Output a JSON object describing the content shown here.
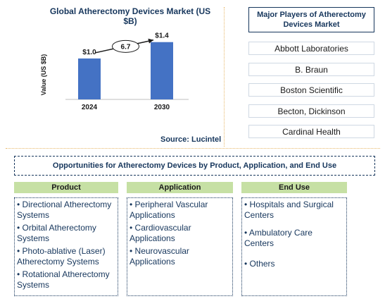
{
  "chart_data": {
    "type": "bar",
    "title": "Global Atherectomy Devices Market (US $B)",
    "ylabel": "Value (US $B)",
    "categories": [
      "2024",
      "2030"
    ],
    "values": [
      1.0,
      1.4
    ],
    "value_labels": [
      "$1.0",
      "$1.4"
    ],
    "cagr_label": "6.7",
    "source": "Source: Lucintel",
    "bar_color": "#4472c4"
  },
  "players": {
    "title": "Major Players of Atherectomy Devices Market",
    "items": [
      "Abbott Laboratories",
      "B. Braun",
      "Boston Scientific",
      "Becton, Dickinson",
      "Cardinal Health"
    ]
  },
  "opportunities": {
    "title": "Opportunities for Atherectomy Devices by Product, Application, and End Use",
    "columns": [
      {
        "heading": "Product",
        "items": [
          "• Directional Atherectomy Systems",
          "• Orbital Atherectomy Systems",
          "• Photo-ablative (Laser) Atherectomy Systems",
          "• Rotational Atherectomy Systems"
        ]
      },
      {
        "heading": "Application",
        "items": [
          "• Peripheral Vascular Applications",
          "• Cardiovascular Applications",
          "• Neurovascular Applications"
        ]
      },
      {
        "heading": "End Use",
        "items": [
          "• Hospitals and Surgical Centers",
          "• Ambulatory Care Centers",
          "• Others"
        ]
      }
    ]
  },
  "colors": {
    "title_navy": "#16365c",
    "header_green": "#c6e0a4",
    "divider_orange": "#e8b86a"
  }
}
